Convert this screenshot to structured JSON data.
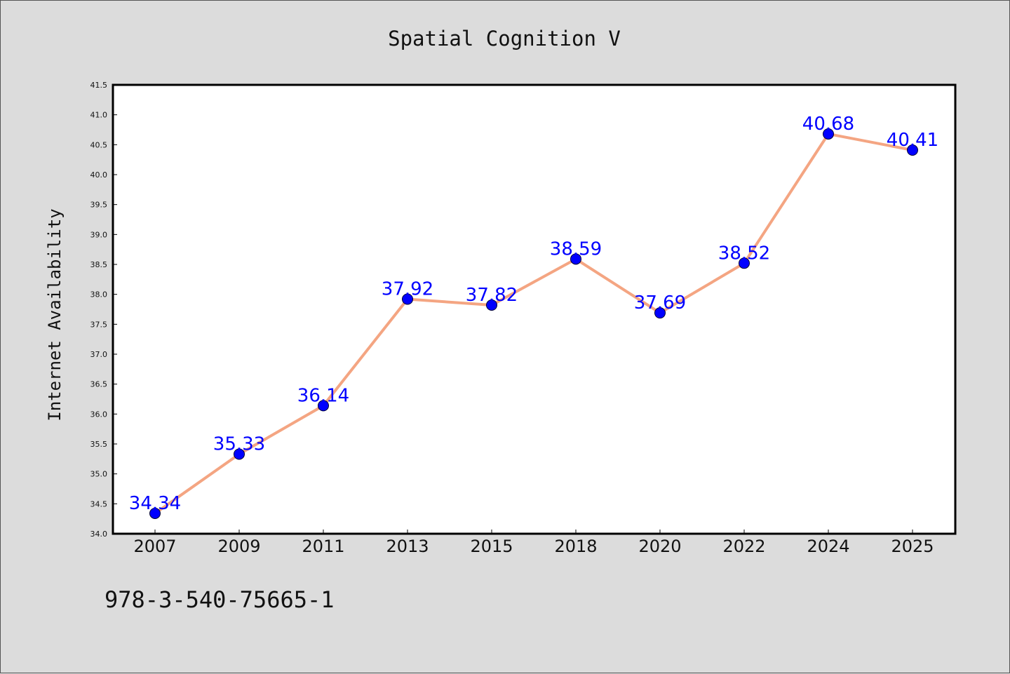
{
  "chart_data": {
    "type": "line",
    "title": "Spatial Cognition V",
    "xlabel": "",
    "ylabel": "Internet Availability",
    "categories": [
      "2007",
      "2009",
      "2011",
      "2013",
      "2015",
      "2018",
      "2020",
      "2022",
      "2024",
      "2025"
    ],
    "values": [
      34.34,
      35.33,
      36.14,
      37.92,
      37.82,
      38.59,
      37.69,
      38.52,
      40.68,
      40.41
    ],
    "data_labels": [
      "34.34",
      "35.33",
      "36.14",
      "37.92",
      "37.82",
      "38.59",
      "37.69",
      "38.52",
      "40.68",
      "40.41"
    ],
    "ylim": [
      34.0,
      41.5
    ],
    "yticks": [
      "34.0",
      "34.5",
      "35.0",
      "35.5",
      "36.0",
      "36.5",
      "37.0",
      "37.5",
      "38.0",
      "38.5",
      "39.0",
      "39.5",
      "40.0",
      "40.5",
      "41.0",
      "41.5"
    ],
    "grid": false,
    "line_color": "#f4a582",
    "marker_color": "#0000ff",
    "label_color": "#0000ff"
  },
  "footer": {
    "isbn": "978-3-540-75665-1"
  }
}
